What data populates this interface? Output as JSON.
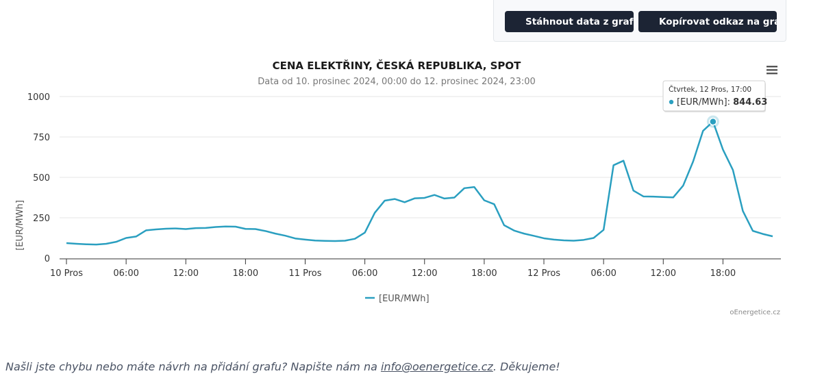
{
  "toolbar": {
    "download_label": "Stáhnout data z grafu",
    "copy_label": "Kopírovat odkaz na graf"
  },
  "chart_data": {
    "type": "line",
    "title": "CENA ELEKTŘINY, ČESKÁ REPUBLIKA, SPOT",
    "subtitle": "Data od 10. prosinec 2024, 00:00 do 12. prosinec 2024, 23:00",
    "ylabel": "[EUR/MWh]",
    "xlabel": "",
    "ylim": [
      0,
      1000
    ],
    "yticks": [
      0,
      250,
      500,
      750,
      1000
    ],
    "x_start": "2024-12-10 00:00",
    "x_interval": "1h",
    "xticks": [
      "10 Pros",
      "06:00",
      "12:00",
      "18:00",
      "11 Pros",
      "06:00",
      "12:00",
      "18:00",
      "12 Pros",
      "06:00",
      "12:00",
      "18:00"
    ],
    "grid": true,
    "legend": "bottom-center",
    "color": "#2a9fc0",
    "series": [
      {
        "name": "[EUR/MWh]",
        "values": [
          93,
          89,
          86,
          84,
          89,
          101,
          125,
          134,
          172,
          178,
          182,
          184,
          180,
          186,
          187,
          193,
          196,
          195,
          181,
          180,
          168,
          152,
          139,
          122,
          115,
          109,
          107,
          106,
          108,
          120,
          158,
          281,
          356,
          366,
          346,
          370,
          373,
          391,
          369,
          375,
          433,
          440,
          358,
          334,
          204,
          171,
          152,
          138,
          123,
          115,
          110,
          108,
          113,
          125,
          175,
          575,
          603,
          418,
          382,
          381,
          378,
          376,
          449,
          598,
          788,
          845,
          672,
          546,
          292,
          169,
          150,
          135
        ]
      }
    ],
    "tooltip": {
      "header": "Čtvrtek, 12 Pros, 17:00",
      "series": "[EUR/MWh]",
      "value": "844.63",
      "index": 65
    },
    "credit": "oEnergetice.cz"
  },
  "footer": {
    "text_before": "Našli jste chybu nebo máte návrh na přidání grafu? Napište nám na ",
    "email": "info@oenergetice.cz",
    "text_after": ". Děkujeme!"
  }
}
